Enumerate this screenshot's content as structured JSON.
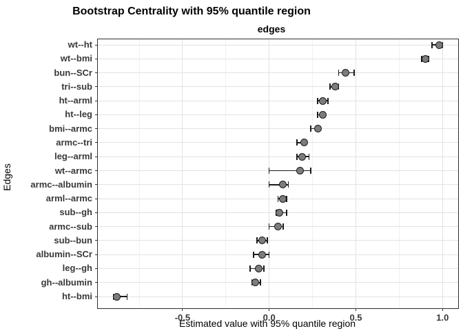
{
  "chart_data": {
    "type": "scatter",
    "subtype": "horizontal-dot-with-95pct-quantile-error-bars",
    "title": "Bootstrap Centrality with 95% quantile region",
    "facet_label": "edges",
    "xlabel": "Estimated value with 95% quantile region",
    "ylabel": "Edges",
    "legend": "none",
    "grid": true,
    "xlim": [
      -0.99,
      1.09
    ],
    "x_major_ticks": [
      -0.5,
      0.0,
      0.5,
      1.0
    ],
    "x_tick_labels": [
      "-0.5",
      "0.0",
      "0.5",
      "1.0"
    ],
    "x_minor_gridlines": [
      -0.75,
      -0.25,
      0.25,
      0.75
    ],
    "categories": [
      "wt--ht",
      "wt--bmi",
      "bun--SCr",
      "tri--sub",
      "ht--arml",
      "ht--leg",
      "bmi--armc",
      "armc--tri",
      "leg--arml",
      "wt--armc",
      "armc--albumin",
      "arml--armc",
      "sub--gh",
      "armc--sub",
      "sub--bun",
      "albumin--SCr",
      "leg--gh",
      "gh--albumin",
      "ht--bmi"
    ],
    "points": [
      {
        "label": "wt--ht",
        "value": 0.98,
        "lower": 0.94,
        "upper": 1.0
      },
      {
        "label": "wt--bmi",
        "value": 0.9,
        "lower": 0.88,
        "upper": 0.92
      },
      {
        "label": "bun--SCr",
        "value": 0.44,
        "lower": 0.4,
        "upper": 0.49
      },
      {
        "label": "tri--sub",
        "value": 0.38,
        "lower": 0.35,
        "upper": 0.4
      },
      {
        "label": "ht--arml",
        "value": 0.31,
        "lower": 0.28,
        "upper": 0.34
      },
      {
        "label": "ht--leg",
        "value": 0.31,
        "lower": 0.28,
        "upper": 0.32
      },
      {
        "label": "bmi--armc",
        "value": 0.28,
        "lower": 0.24,
        "upper": 0.29
      },
      {
        "label": "armc--tri",
        "value": 0.2,
        "lower": 0.16,
        "upper": 0.21
      },
      {
        "label": "leg--arml",
        "value": 0.19,
        "lower": 0.16,
        "upper": 0.23
      },
      {
        "label": "wt--armc",
        "value": 0.18,
        "lower": 0.0,
        "upper": 0.24
      },
      {
        "label": "armc--albumin",
        "value": 0.08,
        "lower": 0.0,
        "upper": 0.11
      },
      {
        "label": "arml--armc",
        "value": 0.08,
        "lower": 0.05,
        "upper": 0.1
      },
      {
        "label": "sub--gh",
        "value": 0.06,
        "lower": 0.04,
        "upper": 0.1
      },
      {
        "label": "armc--sub",
        "value": 0.05,
        "lower": 0.0,
        "upper": 0.08
      },
      {
        "label": "sub--bun",
        "value": -0.04,
        "lower": -0.07,
        "upper": -0.01
      },
      {
        "label": "albumin--SCr",
        "value": -0.04,
        "lower": -0.09,
        "upper": 0.0
      },
      {
        "label": "leg--gh",
        "value": -0.06,
        "lower": -0.11,
        "upper": -0.03
      },
      {
        "label": "gh--albumin",
        "value": -0.08,
        "lower": -0.1,
        "upper": -0.05
      },
      {
        "label": "ht--bmi",
        "value": -0.88,
        "lower": -0.9,
        "upper": -0.82
      }
    ],
    "colors": {
      "background": "#ffffff",
      "point_fill": "#7c7c7c",
      "point_stroke": "#1a1a1a",
      "error_bar": "#1a1a1a",
      "grid_major": "#e2e2e2",
      "grid_minor": "#f0f0f0",
      "panel_border": "#2e2e2e",
      "axis_text": "#383838",
      "title_text": "#000000"
    }
  }
}
